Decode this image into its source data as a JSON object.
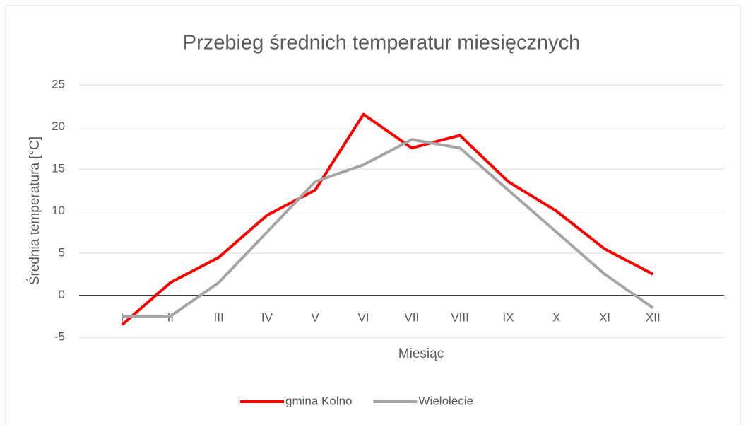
{
  "chart_data": {
    "type": "line",
    "title": "Przebieg średnich temperatur miesięcznych",
    "xlabel": "Miesiąc",
    "ylabel": "Średnia temperatura [°C]",
    "categories": [
      "I",
      "II",
      "III",
      "IV",
      "V",
      "VI",
      "VII",
      "VIII",
      "IX",
      "X",
      "XI",
      "XII"
    ],
    "series": [
      {
        "name": "gmina Kolno",
        "color": "#ff0000",
        "values": [
          -3.5,
          1.5,
          4.5,
          9.5,
          12.5,
          21.5,
          17.5,
          19,
          13.5,
          10,
          5.5,
          2.5
        ]
      },
      {
        "name": "Wielolecie",
        "color": "#a5a5a5",
        "values": [
          -2.5,
          -2.5,
          1.5,
          7.5,
          13.5,
          15.5,
          18.5,
          17.5,
          12.5,
          7.5,
          2.5,
          -1.5
        ]
      }
    ],
    "ylim": [
      -5,
      25
    ],
    "yticks": [
      -5,
      0,
      5,
      10,
      15,
      20,
      25
    ],
    "grid": true,
    "legend": "bottom"
  }
}
